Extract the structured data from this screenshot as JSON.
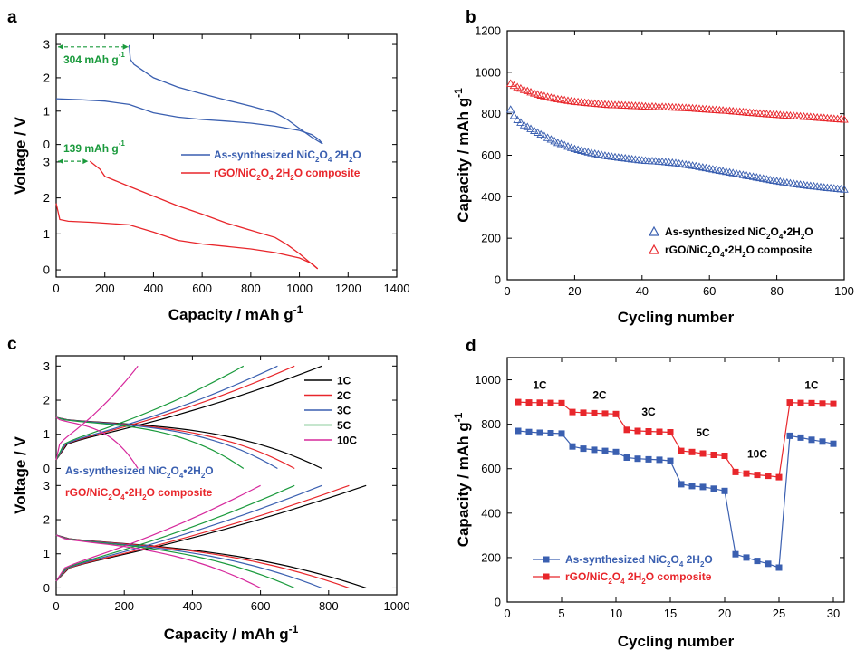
{
  "chart_data": [
    {
      "panel": "a",
      "type": "line",
      "xlabel": "Capacity / mAh g",
      "xlabel_sup": "-1",
      "ylabel": "Voltage / V",
      "xlim": [
        0,
        1400
      ],
      "xticks": [
        0,
        200,
        400,
        600,
        800,
        1000,
        1200,
        1400
      ],
      "sub_ylim": [
        -0.2,
        3.3
      ],
      "sub_yticks": [
        0,
        1,
        2,
        3
      ],
      "annotations": [
        {
          "text": "304 mAh g",
          "sup": "-1",
          "color": "#1a9a3c",
          "sub": "top"
        },
        {
          "text": "139 mAh g",
          "sup": "-1",
          "color": "#1a9a3c",
          "sub": "bottom"
        }
      ],
      "series": [
        {
          "name": "As-synthesized NiC",
          "name_parts": [
            "As-synthesized NiC",
            "2",
            "O",
            "4",
            " 2H",
            "2",
            "O"
          ],
          "color": "#3a5fb0",
          "sub": "top",
          "discharge": [
            [
              0,
              1.37
            ],
            [
              100,
              1.34
            ],
            [
              200,
              1.3
            ],
            [
              300,
              1.2
            ],
            [
              400,
              0.95
            ],
            [
              500,
              0.82
            ],
            [
              600,
              0.75
            ],
            [
              700,
              0.7
            ],
            [
              800,
              0.64
            ],
            [
              900,
              0.55
            ],
            [
              1000,
              0.42
            ],
            [
              1050,
              0.3
            ],
            [
              1080,
              0.15
            ],
            [
              1095,
              0.02
            ]
          ],
          "charge": [
            [
              1095,
              0.02
            ],
            [
              1050,
              0.22
            ],
            [
              1000,
              0.48
            ],
            [
              950,
              0.75
            ],
            [
              900,
              0.95
            ],
            [
              800,
              1.15
            ],
            [
              700,
              1.33
            ],
            [
              600,
              1.52
            ],
            [
              500,
              1.72
            ],
            [
              400,
              2.0
            ],
            [
              350,
              2.25
            ],
            [
              320,
              2.4
            ],
            [
              305,
              2.55
            ],
            [
              300,
              2.98
            ]
          ]
        },
        {
          "name": "rGO/NiC",
          "name_parts": [
            "rGO/NiC",
            "2",
            "O",
            "4",
            " 2H",
            "2",
            "O composite"
          ],
          "color": "#e8262b",
          "sub": "bottom",
          "discharge": [
            [
              0,
              1.85
            ],
            [
              15,
              1.4
            ],
            [
              50,
              1.35
            ],
            [
              150,
              1.32
            ],
            [
              300,
              1.25
            ],
            [
              400,
              1.05
            ],
            [
              500,
              0.82
            ],
            [
              600,
              0.72
            ],
            [
              700,
              0.65
            ],
            [
              800,
              0.58
            ],
            [
              900,
              0.48
            ],
            [
              1000,
              0.33
            ],
            [
              1050,
              0.18
            ],
            [
              1075,
              0.03
            ]
          ],
          "charge": [
            [
              1075,
              0.03
            ],
            [
              1040,
              0.22
            ],
            [
              1000,
              0.45
            ],
            [
              950,
              0.7
            ],
            [
              900,
              0.9
            ],
            [
              800,
              1.1
            ],
            [
              700,
              1.3
            ],
            [
              600,
              1.55
            ],
            [
              500,
              1.78
            ],
            [
              400,
              2.05
            ],
            [
              300,
              2.32
            ],
            [
              200,
              2.6
            ],
            [
              180,
              2.8
            ],
            [
              139,
              3.02
            ]
          ]
        }
      ]
    },
    {
      "panel": "b",
      "type": "scatter",
      "xlabel": "Cycling number",
      "ylabel": "Capacity / mAh g",
      "ylabel_sup": "-1",
      "xlim": [
        0,
        100
      ],
      "ylim": [
        0,
        1200
      ],
      "xticks": [
        0,
        20,
        40,
        60,
        80,
        100
      ],
      "yticks": [
        0,
        200,
        400,
        600,
        800,
        1000,
        1200
      ],
      "series": [
        {
          "name": "As-synthesized NiC",
          "name_parts": [
            "As-synthesized NiC",
            "2",
            "O",
            "4",
            "•2H",
            "2",
            "O"
          ],
          "color": "#3a5fb0",
          "marker": "triangle-open",
          "points": [
            [
              1,
              820
            ],
            [
              2,
              790
            ],
            [
              3,
              770
            ],
            [
              5,
              745
            ],
            [
              8,
              718
            ],
            [
              10,
              700
            ],
            [
              15,
              660
            ],
            [
              20,
              630
            ],
            [
              25,
              610
            ],
            [
              30,
              595
            ],
            [
              35,
              585
            ],
            [
              40,
              575
            ],
            [
              45,
              570
            ],
            [
              50,
              562
            ],
            [
              55,
              550
            ],
            [
              60,
              535
            ],
            [
              65,
              520
            ],
            [
              70,
              505
            ],
            [
              75,
              490
            ],
            [
              80,
              475
            ],
            [
              85,
              462
            ],
            [
              90,
              452
            ],
            [
              95,
              443
            ],
            [
              100,
              435
            ]
          ]
        },
        {
          "name": "rGO/NiC",
          "name_parts": [
            "rGO/NiC",
            "2",
            "O",
            "4",
            "•2H",
            "2",
            "O composite"
          ],
          "color": "#e8262b",
          "marker": "triangle-open",
          "points": [
            [
              1,
              945
            ],
            [
              2,
              935
            ],
            [
              3,
              928
            ],
            [
              5,
              915
            ],
            [
              8,
              898
            ],
            [
              10,
              888
            ],
            [
              15,
              870
            ],
            [
              20,
              858
            ],
            [
              25,
              850
            ],
            [
              30,
              843
            ],
            [
              35,
              840
            ],
            [
              40,
              836
            ],
            [
              45,
              833
            ],
            [
              50,
              830
            ],
            [
              55,
              826
            ],
            [
              60,
              820
            ],
            [
              65,
              815
            ],
            [
              70,
              808
            ],
            [
              75,
              801
            ],
            [
              80,
              795
            ],
            [
              85,
              789
            ],
            [
              90,
              784
            ],
            [
              95,
              778
            ],
            [
              100,
              772
            ]
          ]
        }
      ]
    },
    {
      "panel": "c",
      "type": "line",
      "xlabel": "Capacity / mAh g",
      "xlabel_sup": "-1",
      "ylabel": "Voltage / V",
      "xlim": [
        0,
        1000
      ],
      "xticks": [
        0,
        200,
        400,
        600,
        800,
        1000
      ],
      "sub_ylim": [
        -0.2,
        3.3
      ],
      "sub_yticks": [
        0,
        1,
        2,
        3
      ],
      "sub_titles": [
        {
          "parts": [
            "As-synthesized NiC",
            "2",
            "O",
            "4",
            "•2H",
            "2",
            "O"
          ],
          "color": "#3a5fb0"
        },
        {
          "parts": [
            "rGO/NiC",
            "2",
            "O",
            "4",
            "•2H",
            "2",
            "O composite"
          ],
          "color": "#e8262b"
        }
      ],
      "rates": [
        {
          "name": "1C",
          "color": "#000000",
          "top_cap": 780,
          "bot_cap": 910
        },
        {
          "name": "2C",
          "color": "#e8262b",
          "top_cap": 700,
          "bot_cap": 860
        },
        {
          "name": "3C",
          "color": "#3a5fb0",
          "top_cap": 650,
          "bot_cap": 780
        },
        {
          "name": "5C",
          "color": "#1a9a3c",
          "top_cap": 550,
          "bot_cap": 700
        },
        {
          "name": "10C",
          "color": "#d6289c",
          "top_cap": 240,
          "bot_cap": 600
        }
      ]
    },
    {
      "panel": "d",
      "type": "line",
      "xlabel": "Cycling number",
      "ylabel": "Capacity / mAh g",
      "ylabel_sup": "-1",
      "xlim": [
        0,
        31
      ],
      "ylim": [
        0,
        1100
      ],
      "xticks": [
        0,
        5,
        10,
        15,
        20,
        25,
        30
      ],
      "yticks": [
        0,
        200,
        400,
        600,
        800,
        1000
      ],
      "rate_labels": [
        {
          "text": "1C",
          "x": 3,
          "y": 960
        },
        {
          "text": "2C",
          "x": 8.5,
          "y": 915
        },
        {
          "text": "3C",
          "x": 13,
          "y": 840
        },
        {
          "text": "5C",
          "x": 18,
          "y": 745
        },
        {
          "text": "10C",
          "x": 23,
          "y": 650
        },
        {
          "text": "1C",
          "x": 28,
          "y": 960
        }
      ],
      "series": [
        {
          "name": "As-synthesized NiC",
          "name_parts": [
            "As-synthesized NiC",
            "2",
            "O",
            "4",
            " 2H",
            "2",
            "O"
          ],
          "color": "#3a5fb0",
          "values": [
            770,
            765,
            762,
            760,
            758,
            700,
            690,
            685,
            680,
            675,
            650,
            645,
            642,
            640,
            635,
            530,
            522,
            518,
            510,
            500,
            215,
            200,
            185,
            172,
            155,
            748,
            740,
            730,
            722,
            712
          ]
        },
        {
          "name": "rGO/NiC",
          "name_parts": [
            "rGO/NiC",
            "2",
            "O",
            "4",
            " 2H",
            "2",
            "O composite"
          ],
          "color": "#e8262b",
          "values": [
            900,
            898,
            897,
            896,
            895,
            855,
            852,
            850,
            848,
            846,
            775,
            770,
            768,
            766,
            764,
            680,
            675,
            668,
            662,
            658,
            585,
            578,
            572,
            568,
            562,
            898,
            896,
            895,
            893,
            892
          ]
        }
      ]
    }
  ]
}
